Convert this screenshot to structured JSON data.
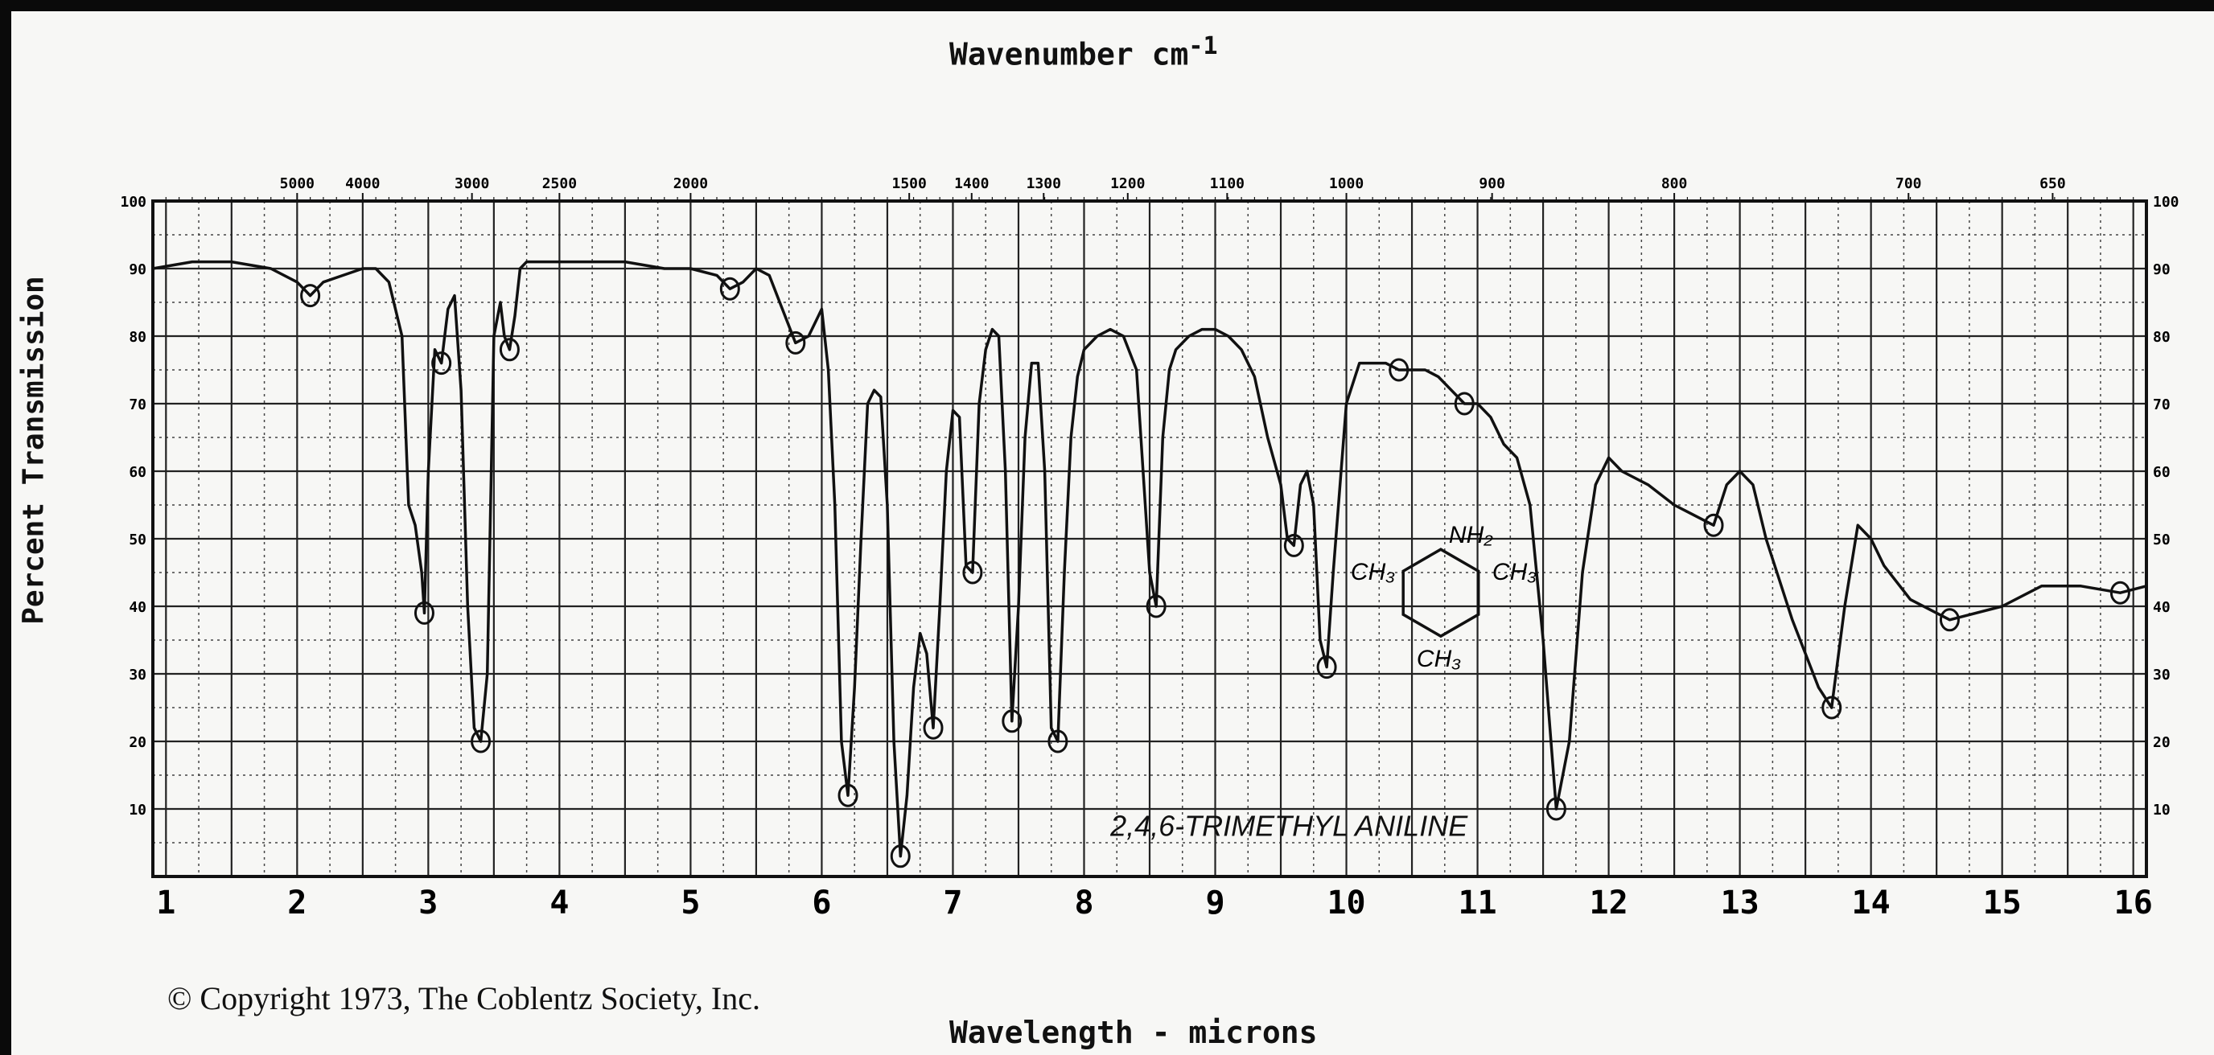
{
  "chart_data": {
    "type": "line",
    "title": "Wavenumber cm",
    "title_superscript": "-1",
    "xlabel": "Wavelength - microns",
    "ylabel": "Percent Transmission",
    "xlim": [
      0.9,
      16.1
    ],
    "ylim": [
      0,
      100
    ],
    "grid": true,
    "legend": "none",
    "annotation": "2,4,6-TRIMETHYL ANILINE",
    "copyright": "© Copyright 1973, The Coblentz Society, Inc.",
    "x_ticks": [
      1,
      2,
      3,
      4,
      5,
      6,
      7,
      8,
      9,
      10,
      11,
      12,
      13,
      14,
      15,
      16
    ],
    "y_ticks": [
      10,
      20,
      30,
      40,
      50,
      60,
      70,
      80,
      90,
      100
    ],
    "y_tick_labels": [
      "10",
      "20",
      "30",
      "40",
      "50",
      "60",
      "70",
      "80",
      "90",
      "100"
    ],
    "wavenumber_ticks": [
      {
        "label": "5000",
        "micron": 2.0
      },
      {
        "label": "4000",
        "micron": 2.5
      },
      {
        "label": "3000",
        "micron": 3.333
      },
      {
        "label": "2500",
        "micron": 4.0
      },
      {
        "label": "2000",
        "micron": 5.0
      },
      {
        "label": "1500",
        "micron": 6.667
      },
      {
        "label": "1400",
        "micron": 7.143
      },
      {
        "label": "1300",
        "micron": 7.692
      },
      {
        "label": "1200",
        "micron": 8.333
      },
      {
        "label": "1100",
        "micron": 9.091
      },
      {
        "label": "1000",
        "micron": 10.0
      },
      {
        "label": "900",
        "micron": 11.111
      },
      {
        "label": "800",
        "micron": 12.5
      },
      {
        "label": "700",
        "micron": 14.286
      },
      {
        "label": "650",
        "micron": 15.385
      }
    ],
    "series": [
      {
        "x": [
          0.9,
          1.2,
          1.5,
          1.8,
          2.0,
          2.1,
          2.2,
          2.35,
          2.5,
          2.6,
          2.7,
          2.8,
          2.85,
          2.9,
          2.95,
          2.97,
          3.0,
          3.05,
          3.1,
          3.15,
          3.2,
          3.25,
          3.3,
          3.35,
          3.4,
          3.45,
          3.5,
          3.55,
          3.58,
          3.62,
          3.66,
          3.7,
          3.75,
          3.8,
          3.9,
          4.0,
          4.2,
          4.5,
          4.8,
          5.0,
          5.2,
          5.3,
          5.4,
          5.5,
          5.6,
          5.7,
          5.8,
          5.9,
          6.0,
          6.05,
          6.1,
          6.15,
          6.2,
          6.25,
          6.3,
          6.35,
          6.4,
          6.45,
          6.5,
          6.55,
          6.6,
          6.65,
          6.7,
          6.75,
          6.8,
          6.85,
          6.9,
          6.95,
          7.0,
          7.05,
          7.1,
          7.15,
          7.2,
          7.25,
          7.3,
          7.35,
          7.4,
          7.45,
          7.5,
          7.55,
          7.6,
          7.65,
          7.7,
          7.75,
          7.8,
          7.85,
          7.9,
          7.95,
          8.0,
          8.1,
          8.2,
          8.3,
          8.4,
          8.5,
          8.55,
          8.6,
          8.65,
          8.7,
          8.8,
          8.9,
          9.0,
          9.1,
          9.2,
          9.3,
          9.4,
          9.5,
          9.55,
          9.6,
          9.65,
          9.7,
          9.75,
          9.8,
          9.85,
          9.9,
          10.0,
          10.1,
          10.2,
          10.3,
          10.4,
          10.5,
          10.6,
          10.7,
          10.8,
          10.9,
          11.0,
          11.1,
          11.2,
          11.3,
          11.4,
          11.5,
          11.6,
          11.7,
          11.8,
          11.9,
          12.0,
          12.1,
          12.3,
          12.5,
          12.7,
          12.8,
          12.9,
          13.0,
          13.1,
          13.2,
          13.4,
          13.6,
          13.7,
          13.8,
          13.9,
          14.0,
          14.1,
          14.3,
          14.6,
          15.0,
          15.3,
          15.6,
          15.9,
          16.1
        ],
        "y": [
          90,
          91,
          91,
          90,
          88,
          86,
          88,
          89,
          90,
          90,
          88,
          80,
          55,
          52,
          45,
          39,
          60,
          78,
          76,
          84,
          86,
          72,
          40,
          22,
          20,
          30,
          80,
          85,
          80,
          78,
          83,
          90,
          91,
          91,
          91,
          91,
          91,
          91,
          90,
          90,
          89,
          87,
          88,
          90,
          89,
          84,
          79,
          80,
          84,
          75,
          55,
          20,
          12,
          28,
          50,
          70,
          72,
          71,
          55,
          20,
          3,
          12,
          28,
          36,
          33,
          22,
          40,
          60,
          69,
          68,
          46,
          45,
          70,
          78,
          81,
          80,
          60,
          23,
          40,
          65,
          76,
          76,
          60,
          22,
          20,
          45,
          65,
          74,
          78,
          80,
          81,
          80,
          75,
          45,
          40,
          65,
          75,
          78,
          80,
          81,
          81,
          80,
          78,
          74,
          65,
          58,
          50,
          49,
          58,
          60,
          55,
          35,
          31,
          45,
          70,
          76,
          76,
          76,
          75,
          75,
          75,
          74,
          72,
          70,
          70,
          68,
          64,
          62,
          55,
          35,
          10,
          20,
          45,
          58,
          62,
          60,
          58,
          55,
          53,
          52,
          58,
          60,
          58,
          50,
          38,
          28,
          25,
          40,
          52,
          50,
          46,
          41,
          38,
          40,
          43,
          43,
          42,
          43
        ]
      }
    ]
  }
}
